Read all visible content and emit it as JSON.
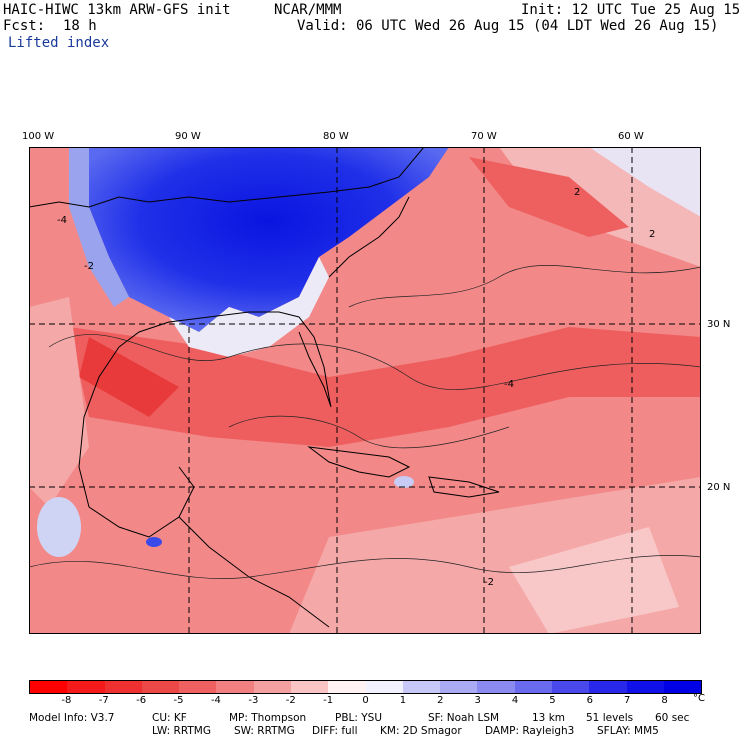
{
  "header": {
    "model": "HAIC-HIWC 13km ARW-GFS init",
    "org": "NCAR/MMM",
    "init": "Init: 12 UTC Tue 25 Aug 15",
    "fcst_label": "Fcst:",
    "fcst_value": "18 h",
    "valid": "Valid: 06 UTC Wed 26 Aug 15 (04 LDT Wed 26 Aug 15)",
    "field": "Lifted index"
  },
  "map": {
    "lon_labels": [
      "100 W",
      "90 W",
      "80 W",
      "70 W",
      "60 W"
    ],
    "lat_labels": [
      "30 N",
      "20 N"
    ],
    "contour_labels": [
      "-4",
      "-2",
      "-4",
      "2",
      "2",
      "-2"
    ]
  },
  "colorbar": {
    "ticks": [
      "-8",
      "-7",
      "-6",
      "-5",
      "-4",
      "-3",
      "-2",
      "-1",
      "0",
      "1",
      "2",
      "3",
      "4",
      "5",
      "6",
      "7",
      "8"
    ],
    "unit": "°C",
    "colors": [
      "#ff0000",
      "#f51a1a",
      "#ef3030",
      "#ec4848",
      "#ef6060",
      "#f28080",
      "#f5a0a0",
      "#f8c4c4",
      "#fff2f2",
      "#f2f2ff",
      "#c8c8f8",
      "#aaaaf5",
      "#8a8af0",
      "#6a6aee",
      "#4848eb",
      "#2828ea",
      "#1010e8",
      "#0000e6"
    ]
  },
  "footer": {
    "line1": {
      "model_info": "Model Info: V3.7",
      "cu": "CU: KF",
      "mp": "MP: Thompson",
      "pbl": "PBL: YSU",
      "sf": "SF: Noah LSM",
      "res": "13 km",
      "levels": "51 levels",
      "dt": "60 sec"
    },
    "line2": {
      "lw": "LW: RRTMG",
      "sw": "SW: RRTMG",
      "diff": "DIFF: full",
      "km": "KM: 2D Smagor",
      "damp": "DAMP: Rayleigh3",
      "sflay": "SFLAY: MM5"
    }
  }
}
